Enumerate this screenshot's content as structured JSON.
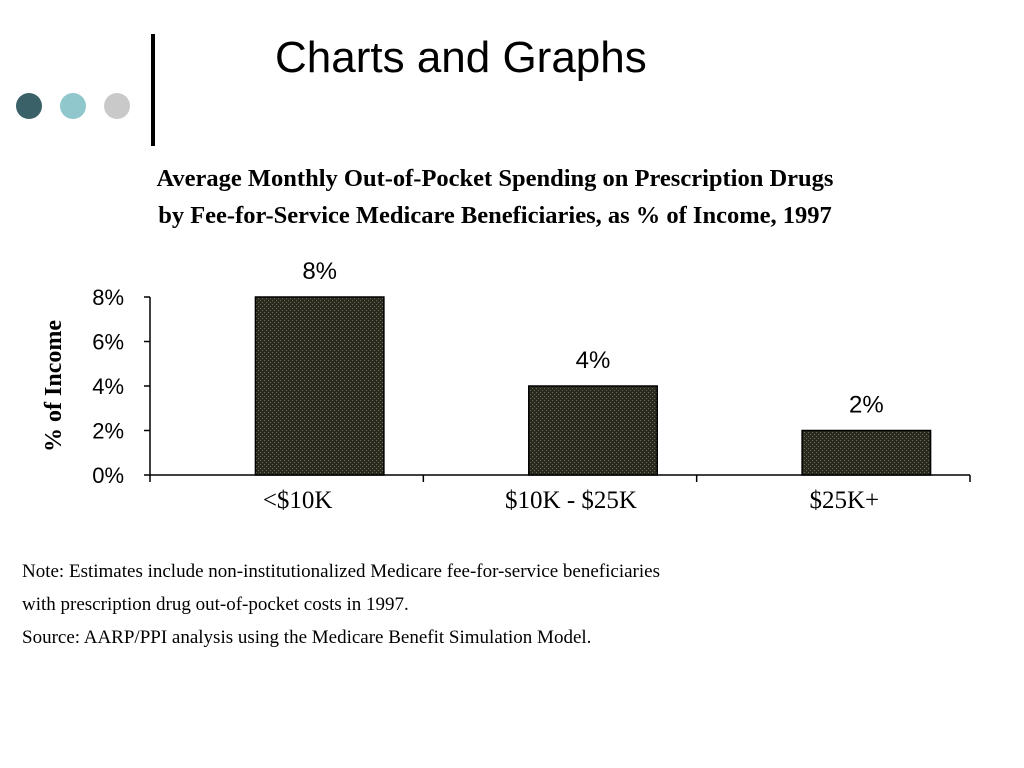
{
  "slide": {
    "title": "Charts and Graphs",
    "bullet_colors": [
      "#3a6168",
      "#8fc7cd",
      "#c9c9c9"
    ]
  },
  "chart_data": {
    "type": "bar",
    "title": "Average Monthly Out-of-Pocket Spending on Prescription Drugs",
    "subtitle": "by Fee-for-Service Medicare Beneficiaries, as % of Income, 1997",
    "categories": [
      "<$10K",
      "$10K - $25K",
      "$25K+"
    ],
    "values": [
      8,
      4,
      2
    ],
    "data_labels": [
      "8%",
      "4%",
      "2%"
    ],
    "ylabel": "% of Income",
    "xlabel": "",
    "ylim": [
      0,
      8
    ],
    "yticks": [
      "0%",
      "2%",
      "4%",
      "6%",
      "8%"
    ],
    "grid": false,
    "bar_color": "#2a2a1e"
  },
  "notes": {
    "line1": "Note:  Estimates include non-institutionalized Medicare fee-for-service beneficiaries",
    "line2": "with prescription drug out-of-pocket costs in 1997.",
    "line3": "Source:  AARP/PPI analysis using the Medicare Benefit Simulation Model."
  }
}
